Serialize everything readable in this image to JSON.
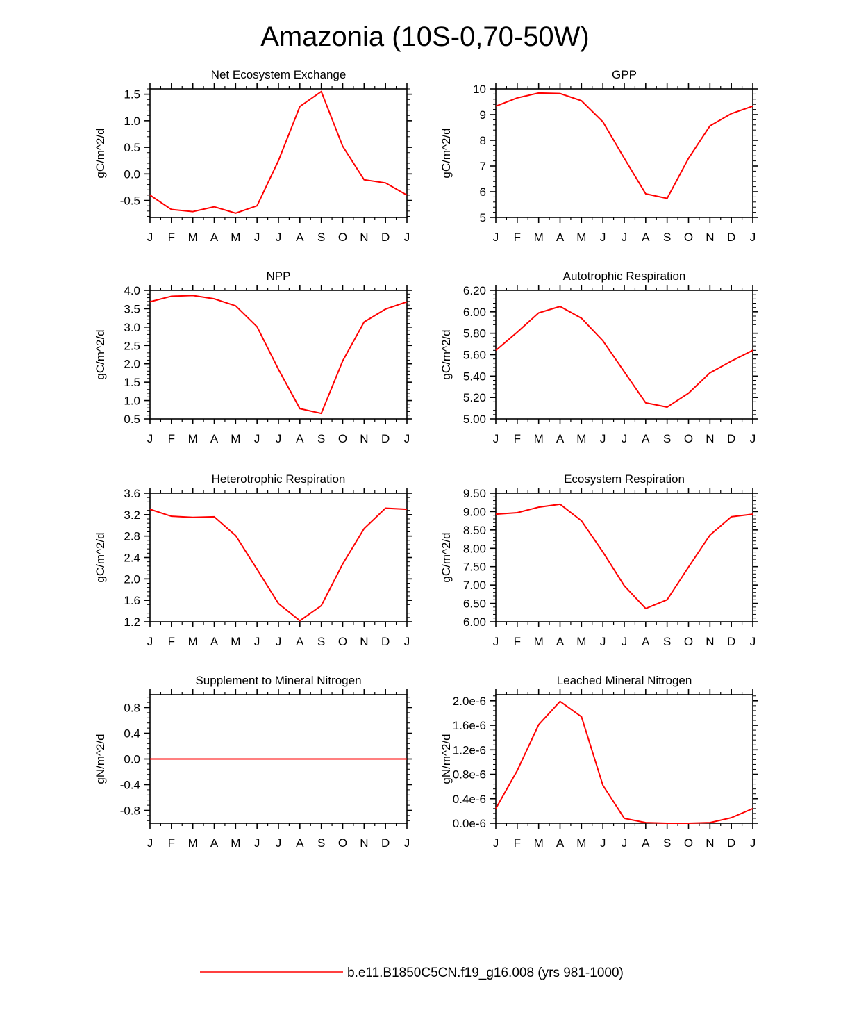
{
  "figure": {
    "title": "Amazonia (10S-0,70-50W)",
    "line_color": "#ff0000",
    "legend": {
      "label": "b.e11.B1850C5CN.f19_g16.008 (yrs 981-1000)",
      "color": "#ff0000"
    }
  },
  "chart_data": [
    {
      "type": "line",
      "title": "Net Ecosystem Exchange",
      "ylabel": "gC/m^2/d",
      "categories": [
        "J",
        "F",
        "M",
        "A",
        "M",
        "J",
        "J",
        "A",
        "S",
        "O",
        "N",
        "D",
        "J"
      ],
      "ylim": [
        -0.82,
        1.6
      ],
      "yticks": [
        -0.5,
        0.0,
        0.5,
        1.0,
        1.5
      ],
      "ytick_labels": [
        "-0.5",
        "0.0",
        "0.5",
        "1.0",
        "1.5"
      ],
      "series": [
        {
          "values": [
            -0.4,
            -0.67,
            -0.71,
            -0.62,
            -0.74,
            -0.6,
            0.25,
            1.27,
            1.55,
            0.52,
            -0.11,
            -0.17,
            -0.4
          ]
        }
      ]
    },
    {
      "type": "line",
      "title": "GPP",
      "ylabel": "gC/m^2/d",
      "categories": [
        "J",
        "F",
        "M",
        "A",
        "M",
        "J",
        "J",
        "A",
        "S",
        "O",
        "N",
        "D",
        "J"
      ],
      "ylim": [
        5,
        10
      ],
      "yticks": [
        5,
        6,
        7,
        8,
        9,
        10
      ],
      "ytick_labels": [
        "5",
        "6",
        "7",
        "8",
        "9",
        "10"
      ],
      "series": [
        {
          "values": [
            9.33,
            9.65,
            9.84,
            9.82,
            9.54,
            8.72,
            7.3,
            5.92,
            5.74,
            7.3,
            8.56,
            9.04,
            9.33
          ]
        }
      ]
    },
    {
      "type": "line",
      "title": "NPP",
      "ylabel": "gC/m^2/d",
      "categories": [
        "J",
        "F",
        "M",
        "A",
        "M",
        "J",
        "J",
        "A",
        "S",
        "O",
        "N",
        "D",
        "J"
      ],
      "ylim": [
        0.5,
        4.0
      ],
      "yticks": [
        0.5,
        1.0,
        1.5,
        2.0,
        2.5,
        3.0,
        3.5,
        4.0
      ],
      "ytick_labels": [
        "0.5",
        "1.0",
        "1.5",
        "2.0",
        "2.5",
        "3.0",
        "3.5",
        "4.0"
      ],
      "series": [
        {
          "values": [
            3.69,
            3.84,
            3.86,
            3.77,
            3.58,
            3.01,
            1.85,
            0.78,
            0.65,
            2.08,
            3.14,
            3.49,
            3.69
          ]
        }
      ]
    },
    {
      "type": "line",
      "title": "Autotrophic Respiration",
      "ylabel": "gC/m^2/d",
      "categories": [
        "J",
        "F",
        "M",
        "A",
        "M",
        "J",
        "J",
        "A",
        "S",
        "O",
        "N",
        "D",
        "J"
      ],
      "ylim": [
        5.0,
        6.2
      ],
      "yticks": [
        5.0,
        5.2,
        5.4,
        5.6,
        5.8,
        6.0,
        6.2
      ],
      "ytick_labels": [
        "5.00",
        "5.20",
        "5.40",
        "5.60",
        "5.80",
        "6.00",
        "6.20"
      ],
      "series": [
        {
          "values": [
            5.64,
            5.81,
            5.99,
            6.05,
            5.94,
            5.73,
            5.44,
            5.15,
            5.11,
            5.24,
            5.43,
            5.54,
            5.64
          ]
        }
      ]
    },
    {
      "type": "line",
      "title": "Heterotrophic Respiration",
      "ylabel": "gC/m^2/d",
      "categories": [
        "J",
        "F",
        "M",
        "A",
        "M",
        "J",
        "J",
        "A",
        "S",
        "O",
        "N",
        "D",
        "J"
      ],
      "ylim": [
        1.2,
        3.6
      ],
      "yticks": [
        1.2,
        1.6,
        2.0,
        2.4,
        2.8,
        3.2,
        3.6
      ],
      "ytick_labels": [
        "1.2",
        "1.6",
        "2.0",
        "2.4",
        "2.8",
        "3.2",
        "3.6"
      ],
      "series": [
        {
          "values": [
            3.3,
            3.17,
            3.15,
            3.16,
            2.81,
            2.18,
            1.54,
            1.22,
            1.5,
            2.28,
            2.94,
            3.32,
            3.3
          ]
        }
      ]
    },
    {
      "type": "line",
      "title": "Ecosystem Respiration",
      "ylabel": "gC/m^2/d",
      "categories": [
        "J",
        "F",
        "M",
        "A",
        "M",
        "J",
        "J",
        "A",
        "S",
        "O",
        "N",
        "D",
        "J"
      ],
      "ylim": [
        6.0,
        9.5
      ],
      "yticks": [
        6.0,
        6.5,
        7.0,
        7.5,
        8.0,
        8.5,
        9.0,
        9.5
      ],
      "ytick_labels": [
        "6.00",
        "6.50",
        "7.00",
        "7.50",
        "8.00",
        "8.50",
        "9.00",
        "9.50"
      ],
      "series": [
        {
          "values": [
            8.93,
            8.97,
            9.12,
            9.2,
            8.75,
            7.9,
            6.98,
            6.36,
            6.6,
            7.49,
            8.36,
            8.86,
            8.93
          ]
        }
      ]
    },
    {
      "type": "line",
      "title": "Supplement to Mineral Nitrogen",
      "ylabel": "gN/m^2/d",
      "categories": [
        "J",
        "F",
        "M",
        "A",
        "M",
        "J",
        "J",
        "A",
        "S",
        "O",
        "N",
        "D",
        "J"
      ],
      "ylim": [
        -1.0,
        1.0
      ],
      "yticks": [
        -0.8,
        -0.4,
        0.0,
        0.4,
        0.8
      ],
      "ytick_labels": [
        "-0.8",
        "-0.4",
        "0.0",
        "0.4",
        "0.8"
      ],
      "series": [
        {
          "values": [
            0,
            0,
            0,
            0,
            0,
            0,
            0,
            0,
            0,
            0,
            0,
            0,
            0
          ]
        }
      ]
    },
    {
      "type": "line",
      "title": "Leached Mineral Nitrogen",
      "ylabel": "gN/m^2/d",
      "categories": [
        "J",
        "F",
        "M",
        "A",
        "M",
        "J",
        "J",
        "A",
        "S",
        "O",
        "N",
        "D",
        "J"
      ],
      "ylim": [
        0,
        2.1e-06
      ],
      "yticks": [
        0,
        4e-07,
        8e-07,
        1.2e-06,
        1.6e-06,
        2e-06
      ],
      "ytick_labels": [
        "0.0e-6",
        "0.4e-6",
        "0.8e-6",
        "1.2e-6",
        "1.6e-6",
        "2.0e-6"
      ],
      "series": [
        {
          "values": [
            2.4e-07,
            8.6e-07,
            1.61e-06,
            1.99e-06,
            1.74e-06,
            6.2e-07,
            8e-08,
            1e-08,
            0,
            0,
            1e-08,
            9e-08,
            2.4e-07
          ]
        }
      ]
    }
  ]
}
